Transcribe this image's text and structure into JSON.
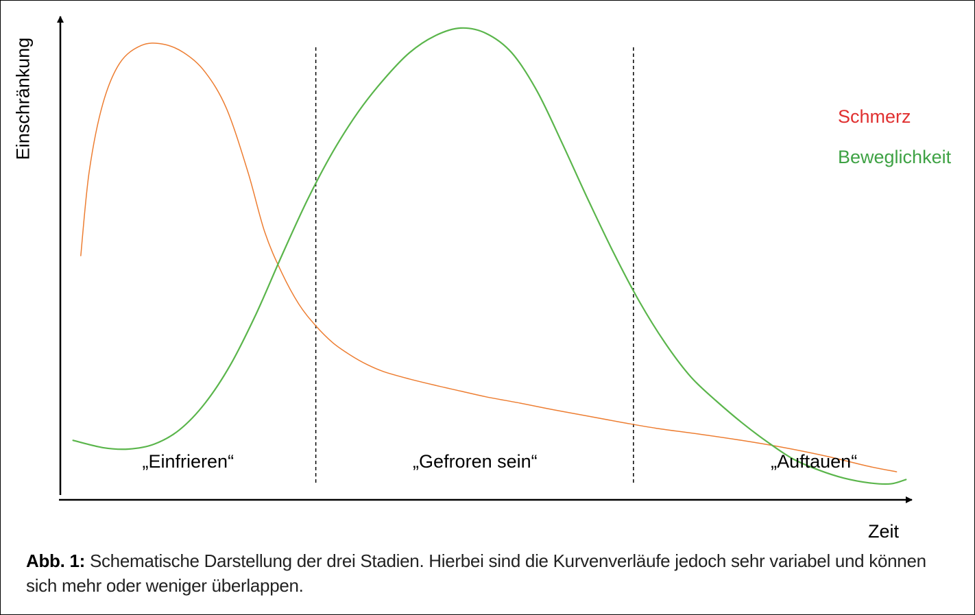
{
  "chart_data": {
    "type": "line",
    "xlabel": "Zeit",
    "ylabel": "Einschränkung",
    "xlim": [
      0,
      100
    ],
    "ylim": [
      0,
      100
    ],
    "grid": false,
    "legend_placement": "top-right",
    "series": [
      {
        "name": "Schmerz",
        "color": "#ed7d31",
        "text_color": "#e03030",
        "x": [
          2.4,
          3.4,
          5,
          7,
          9.5,
          12,
          14.5,
          17,
          19.5,
          22,
          24,
          26,
          28,
          30,
          32,
          34,
          36,
          38,
          41,
          44,
          47,
          50,
          54,
          58,
          62,
          66,
          70,
          75,
          80,
          85,
          90,
          95,
          98.2
        ],
        "values": [
          50.5,
          68,
          82,
          90.4,
          94,
          94.3,
          92.5,
          88.5,
          81,
          68,
          55.4,
          47,
          40.5,
          36,
          32.5,
          30,
          28,
          26.5,
          25,
          23.7,
          22.5,
          21.3,
          20,
          18.6,
          17.3,
          16,
          14.8,
          13.6,
          12.3,
          10.8,
          9,
          6.9,
          5.8
        ]
      },
      {
        "name": "Beweglichkeit",
        "color": "#5ab54b",
        "text_color": "#3ea244",
        "x": [
          1.5,
          5,
          8,
          11,
          14,
          17,
          20,
          23,
          26,
          29,
          32,
          35,
          38,
          41,
          44,
          47,
          50,
          53,
          56,
          59,
          62,
          65,
          68,
          71,
          74,
          77,
          80,
          83,
          86,
          89,
          92,
          95,
          97.5,
          99.3
        ],
        "values": [
          12.3,
          10.8,
          10.5,
          11.5,
          14.5,
          20,
          28,
          38.5,
          50.5,
          62,
          72,
          80.3,
          87,
          92.5,
          96,
          97.6,
          96.5,
          92.5,
          84.5,
          73.5,
          62,
          51,
          41,
          32.5,
          25.5,
          20.5,
          16,
          12,
          8.5,
          6.2,
          4.5,
          3.5,
          3.3,
          4.2
        ]
      }
    ],
    "phase_boundaries": [
      30,
      67.3
    ],
    "phases": [
      {
        "label": "„Einfrieren“",
        "center": 15
      },
      {
        "label": "„Gefroren sein“",
        "center": 48.7
      },
      {
        "label": "„Auftauen“",
        "center": 88.5
      }
    ]
  },
  "caption": {
    "label": "Abb. 1:",
    "text": " Schematische Darstellung der drei Stadien. Hierbei sind die Kurvenverläufe jedoch sehr variabel und können sich mehr oder weniger überlappen."
  }
}
